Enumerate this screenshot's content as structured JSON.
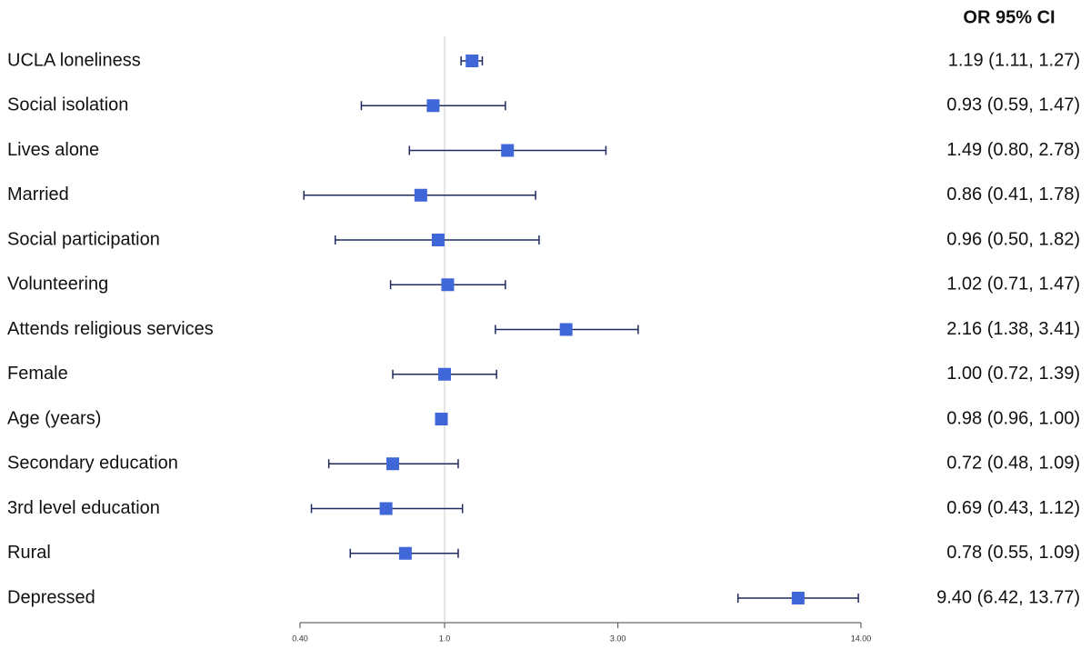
{
  "chart_data": {
    "type": "forest",
    "column_header": "OR 95% CI",
    "categories": [
      "UCLA loneliness",
      "Social isolation",
      "Lives alone",
      "Married",
      "Social participation",
      "Volunteering",
      "Attends religious services",
      "Female",
      "Age (years)",
      "Secondary education",
      "3rd level education",
      "Rural",
      "Depressed"
    ],
    "values": [
      1.19,
      0.93,
      1.49,
      0.86,
      0.96,
      1.02,
      2.16,
      1.0,
      0.98,
      0.72,
      0.69,
      0.78,
      9.4
    ],
    "lower": [
      1.11,
      0.59,
      0.8,
      0.41,
      0.5,
      0.71,
      1.38,
      0.72,
      0.96,
      0.48,
      0.43,
      0.55,
      6.42
    ],
    "upper": [
      1.27,
      1.47,
      2.78,
      1.78,
      1.82,
      1.47,
      3.41,
      1.39,
      1.0,
      1.09,
      1.12,
      1.09,
      13.77
    ],
    "value_labels": [
      "1.19 (1.11, 1.27)",
      "0.93 (0.59, 1.47)",
      "1.49 (0.80, 2.78)",
      "0.86 (0.41, 1.78)",
      "0.96 (0.50, 1.82)",
      "1.02 (0.71, 1.47)",
      "2.16 (1.38, 3.41)",
      "1.00 (0.72, 1.39)",
      "0.98 (0.96, 1.00)",
      "0.72 (0.48, 1.09)",
      "0.69 (0.43, 1.12)",
      "0.78 (0.55, 1.09)",
      "9.40 (6.42, 13.77)"
    ],
    "color": "#3f67d8",
    "ci_color": "#1e2a5e",
    "xscale": "log",
    "xlim": [
      0.4,
      14
    ],
    "xticks": [
      {
        "value": 0.4,
        "label": "0.40"
      },
      {
        "value": 1,
        "label": "1.0"
      },
      {
        "value": 3,
        "label": "3.00"
      },
      {
        "value": 14,
        "label": "14.00"
      }
    ],
    "reference_line": 1
  }
}
